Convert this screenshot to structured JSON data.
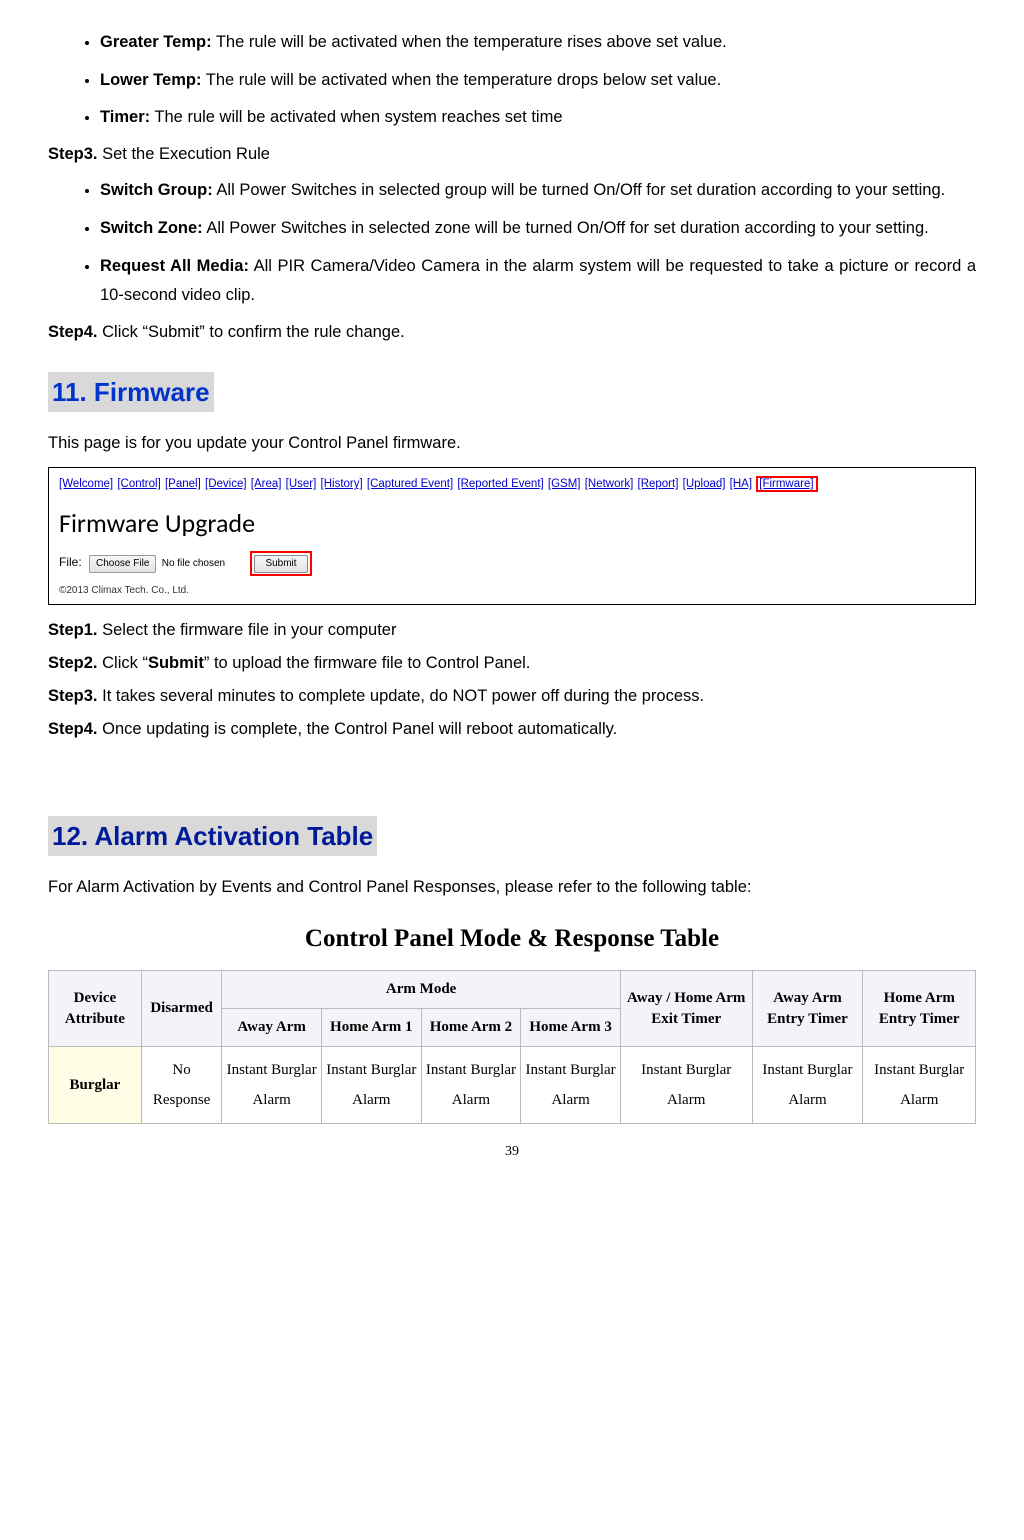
{
  "bullets1": [
    {
      "term": "Greater Temp:",
      "text": " The rule will be activated when the temperature rises above set value."
    },
    {
      "term": "Lower Temp:",
      "text": " The rule will be activated when the temperature drops below set value."
    },
    {
      "term": "Timer:",
      "text": " The rule will be activated when system reaches set time"
    }
  ],
  "step3": {
    "label": "Step3.",
    "text": " Set the Execution Rule"
  },
  "bullets2": [
    {
      "term": "Switch Group:",
      "text": " All Power Switches in selected group will be turned On/Off for set duration according to your setting."
    },
    {
      "term": "Switch Zone:",
      "text": " All Power Switches in selected zone will be turned On/Off for set duration according to your setting."
    },
    {
      "term": "Request All Media:",
      "text": " All PIR Camera/Video Camera in the alarm system will be requested to take a picture or record a 10-second video clip."
    }
  ],
  "step4": {
    "label": "Step4.",
    "text": " Click “Submit” to confirm the rule change."
  },
  "section11": "11. Firmware",
  "section11_intro": "This page is for you update your Control Panel firmware.",
  "nav": [
    "[Welcome]",
    "[Control]",
    "[Panel]",
    "[Device]",
    "[Area]",
    "[User]",
    "[History]",
    "[Captured Event]",
    "[Reported Event]",
    "[GSM]",
    "[Network]",
    "[Report]",
    "[Upload]",
    "[HA]"
  ],
  "nav_highlight": "[Firmware]",
  "fw_title": "Firmware Upgrade",
  "file_label": "File:",
  "choose_file": "Choose File",
  "no_file": "No file chosen",
  "submit": "Submit",
  "copyright": "©2013 Climax Tech. Co., Ltd.",
  "fw_steps": {
    "s1": {
      "label": "Step1.",
      "text": " Select the firmware file in your computer"
    },
    "s2": {
      "label": "Step2.",
      "pre": " Click “",
      "bold": "Submit",
      "post": "” to upload the firmware file to Control Panel."
    },
    "s3": {
      "label": "Step3.",
      "text": " It takes several minutes to complete update, do NOT power off during the process."
    },
    "s4": {
      "label": "Step4.",
      "text": " Once updating is complete, the Control Panel will reboot automatically."
    }
  },
  "section12": "12. Alarm Activation Table",
  "section12_intro": "For Alarm Activation by Events and Control Panel Responses, please refer to the following table:",
  "table_title": "Control Panel Mode & Response Table",
  "table": {
    "head": {
      "dev_attr": "Device Attribute",
      "disarmed": "Disarmed",
      "arm_mode": "Arm Mode",
      "away_arm": "Away Arm",
      "home1": "Home Arm 1",
      "home2": "Home Arm 2",
      "home3": "Home Arm 3",
      "exit_timer": "Away / Home Arm Exit Timer",
      "away_entry": "Away Arm Entry Timer",
      "home_entry": "Home Arm Entry Timer"
    },
    "row1": {
      "name": "Burglar",
      "c": [
        "No Response",
        "Instant Burglar Alarm",
        "Instant Burglar Alarm",
        "Instant Burglar Alarm",
        "Instant Burglar Alarm",
        "Instant Burglar Alarm",
        "Instant Burglar Alarm",
        "Instant Burglar Alarm"
      ]
    }
  },
  "page_number": "39"
}
